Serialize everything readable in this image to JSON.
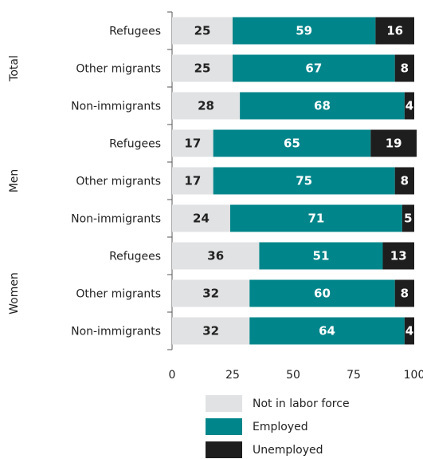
{
  "chart_data": {
    "type": "bar",
    "stacked": true,
    "orientation": "horizontal",
    "groups": [
      {
        "label": "Total",
        "categories": [
          "Refugees",
          "Other migrants",
          "Non-immigrants"
        ]
      },
      {
        "label": "Men",
        "categories": [
          "Refugees",
          "Other migrants",
          "Non-immigrants"
        ]
      },
      {
        "label": "Women",
        "categories": [
          "Refugees",
          "Other migrants",
          "Non-immigrants"
        ]
      }
    ],
    "series": [
      {
        "name": "Not in labor force",
        "color": "#e1e2e3",
        "label_color": "#222222",
        "values": [
          25,
          25,
          28,
          17,
          17,
          24,
          36,
          32,
          32
        ]
      },
      {
        "name": "Employed",
        "color": "#00858a",
        "label_color": "#ffffff",
        "values": [
          59,
          67,
          68,
          65,
          75,
          71,
          51,
          60,
          64
        ]
      },
      {
        "name": "Unemployed",
        "color": "#1e1e1e",
        "label_color": "#ffffff",
        "values": [
          16,
          8,
          4,
          19,
          8,
          5,
          13,
          8,
          4
        ]
      }
    ],
    "xlim": [
      0,
      100
    ],
    "xticks": [
      "0",
      "25",
      "50",
      "75",
      "100"
    ],
    "legend_position": "bottom"
  }
}
